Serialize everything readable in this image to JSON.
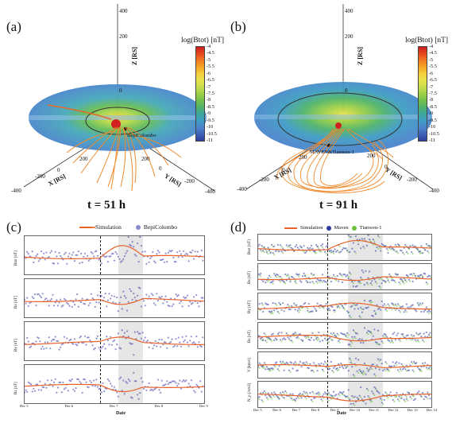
{
  "panels": {
    "a": {
      "label": "(a)",
      "time": "t = 51 h",
      "spacecraft": "BepiColombo",
      "axis_x": "X [RS]",
      "axis_y": "Y [RS]",
      "axis_z": "Z [RS]",
      "x_ticks": [
        "-400",
        "-200",
        "0",
        "200"
      ],
      "y_ticks": [
        "200",
        "0",
        "-200",
        "-400"
      ],
      "z_ticks": [
        "400",
        "200",
        "0"
      ]
    },
    "b": {
      "label": "(b)",
      "time": "t = 91 h",
      "spacecraft": "MAVEN&Tianwen-1",
      "axis_x": "X [RS]",
      "axis_y": "Y [RS]",
      "axis_z": "Z [RS]",
      "x_ticks": [
        "-400",
        "-200",
        "0",
        "200"
      ],
      "y_ticks": [
        "200",
        "0",
        "-200",
        "-400"
      ],
      "z_ticks": [
        "400",
        "200",
        "0"
      ]
    },
    "c": {
      "label": "(c)",
      "legend_sim": "Simulation",
      "legend_obs": "BepiColombo",
      "ylabels": [
        "Btot [nT]",
        "Bx [nT]",
        "By [nT]",
        "Bz [nT]"
      ],
      "xticks": [
        "Dec 5",
        "Dec 6",
        "Dec 7",
        "Dec 8",
        "Dec 9"
      ],
      "xtitle": "Date"
    },
    "d": {
      "label": "(d)",
      "legend_sim": "Simulation",
      "legend_obs1": "Maven",
      "legend_obs2": "Tianwen-1",
      "ylabels": [
        "Btot [nT]",
        "Bx [nT]",
        "By [nT]",
        "Bz [nT]",
        "V [km/s]",
        "N_p [/cm3]"
      ],
      "xticks": [
        "Dec 5",
        "Dec 6",
        "Dec 7",
        "Dec 8",
        "Dec 9",
        "Dec 10",
        "Dec 11",
        "Dec 12",
        "Dec 13",
        "Dec 14"
      ],
      "xtitle": "Date"
    }
  },
  "colorbar": {
    "title": "log(Btot) [nT]",
    "ticks": [
      "-4",
      "-4.5",
      "-5",
      "-5.5",
      "-6",
      "-6.5",
      "-7",
      "-7.5",
      "-8",
      "-8.5",
      "-9",
      "-9.5",
      "-10",
      "-10.5",
      "-11"
    ],
    "colors": [
      "#c81e1e",
      "#e8461e",
      "#f07a23",
      "#f5a623",
      "#f4cf3c",
      "#e9e24a",
      "#c9dd4c",
      "#9ccf47",
      "#71c04a",
      "#4fb36a",
      "#3fa79a",
      "#3f9cc4",
      "#4a86cc",
      "#3f62b8",
      "#2e3f9c"
    ]
  },
  "colors": {
    "simulation": "#e8622a",
    "bepi": "#3a3aa8",
    "maven": "#2d3aa0",
    "tianwen": "#6cbf3a",
    "shade": "#e6e6e6"
  }
}
